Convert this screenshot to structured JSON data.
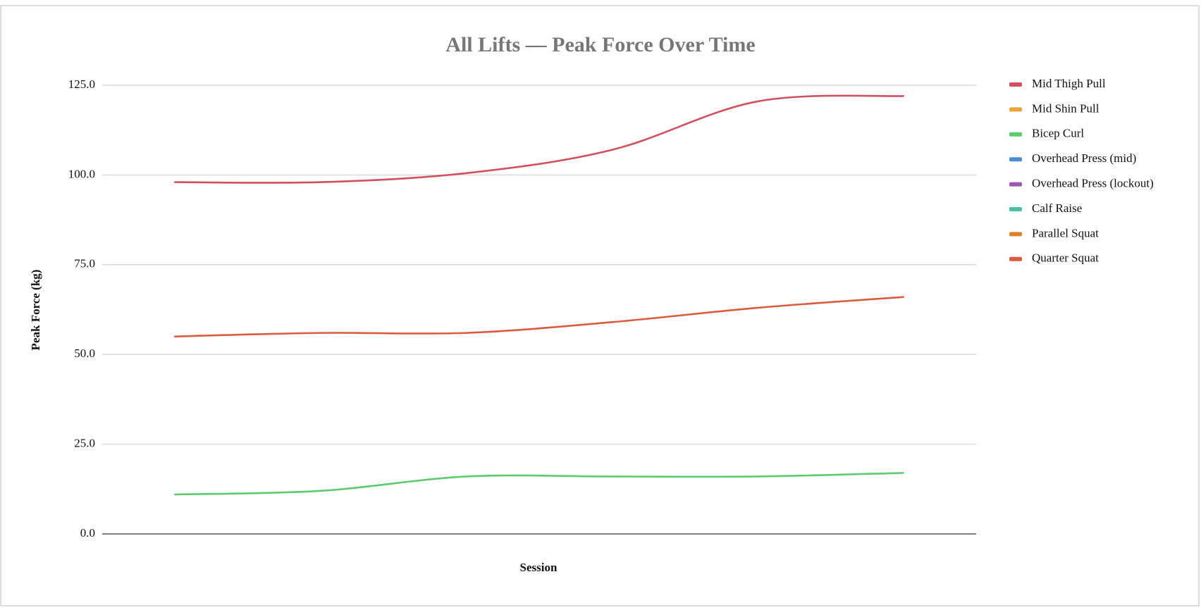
{
  "chart_data": {
    "type": "line",
    "title": "All Lifts — Peak Force Over Time",
    "xlabel": "Session",
    "ylabel": "Peak Force (kg)",
    "categories": [
      null,
      null,
      null,
      null,
      null,
      null
    ],
    "series": [
      {
        "name": "Mid Thigh Pull",
        "color": "#d0505f",
        "values": [
          98,
          98,
          100.5,
          107,
          120.5,
          122
        ]
      },
      {
        "name": "Mid Shin Pull",
        "color": "#e8a838",
        "values": [
          null,
          null,
          null,
          null,
          null,
          null
        ]
      },
      {
        "name": "Bicep Curl",
        "color": "#5ccb6e",
        "values": [
          11,
          12,
          16,
          16,
          16,
          17
        ]
      },
      {
        "name": "Overhead Press (mid)",
        "color": "#4a90d0",
        "values": [
          null,
          null,
          null,
          null,
          null,
          null
        ]
      },
      {
        "name": "Overhead Press (lockout)",
        "color": "#9b59b6",
        "values": [
          null,
          null,
          null,
          null,
          null,
          null
        ]
      },
      {
        "name": "Calf Raise",
        "color": "#4bbf9f",
        "values": [
          null,
          null,
          null,
          null,
          null,
          null
        ]
      },
      {
        "name": "Parallel Squat",
        "color": "#e07f2c",
        "values": [
          null,
          null,
          null,
          null,
          null,
          null
        ]
      },
      {
        "name": "Quarter Squat",
        "color": "#d95c40",
        "values": [
          55,
          56,
          56,
          59,
          63,
          66
        ]
      }
    ],
    "ylim": [
      0,
      125
    ],
    "yticks": [
      {
        "value": 0,
        "label": "0.0"
      },
      {
        "value": 25,
        "label": "25.0"
      },
      {
        "value": 50,
        "label": "50.0"
      },
      {
        "value": 75,
        "label": "75.0"
      },
      {
        "value": 100,
        "label": "100.0"
      },
      {
        "value": 125,
        "label": "125.0"
      }
    ],
    "grid": true,
    "legend": "right"
  }
}
